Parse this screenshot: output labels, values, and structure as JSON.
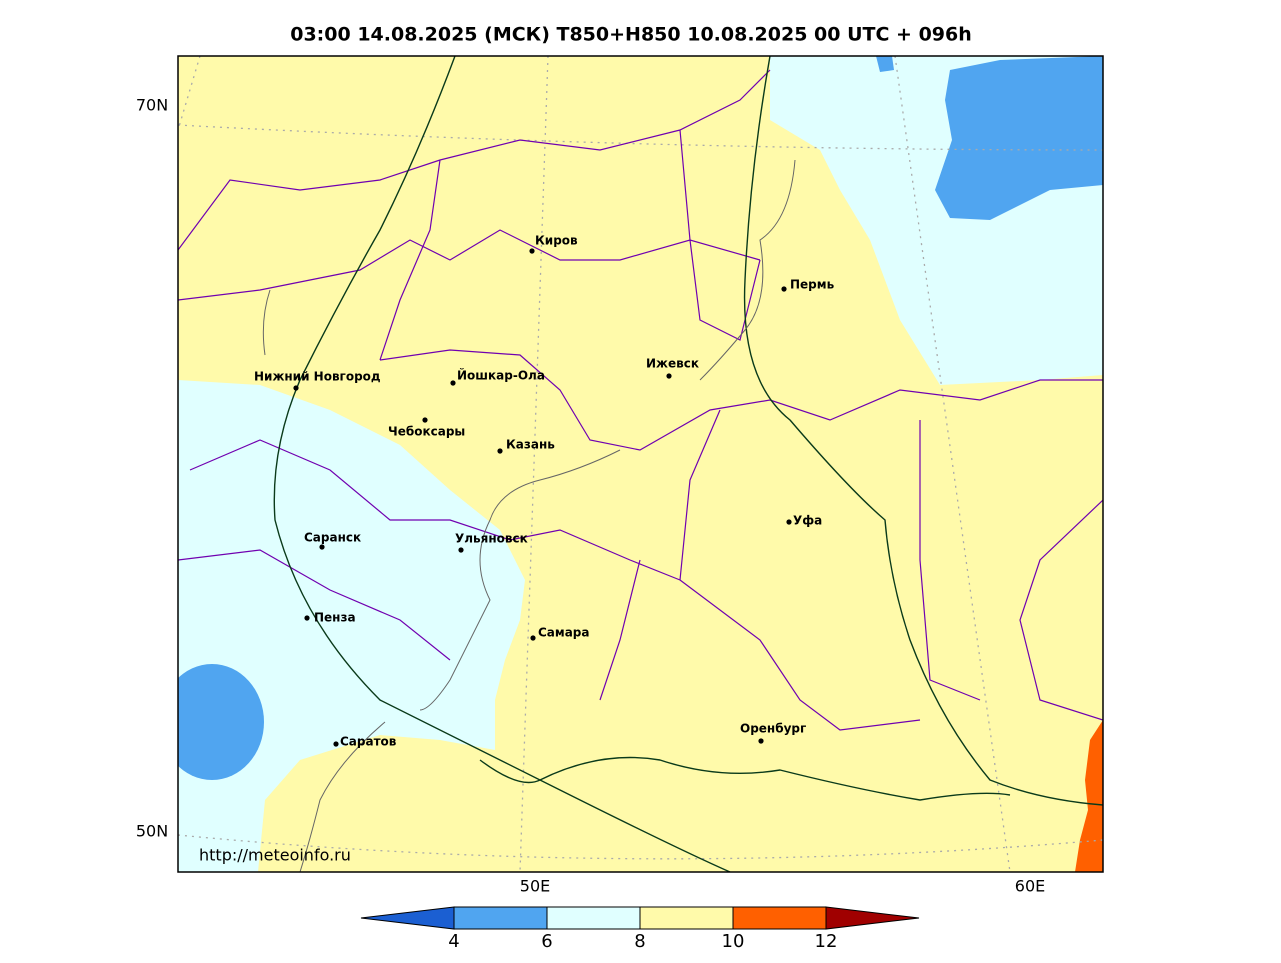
{
  "title": "03:00 14.08.2025 (МСК) T850+H850 10.08.2025 00 UTC + 096h",
  "watermark": "http://meteoinfo.ru",
  "lat_labels": [
    "70N",
    "50N"
  ],
  "lon_labels": [
    "50E",
    "60E"
  ],
  "cities": [
    "Киров",
    "Пермь",
    "Ижевск",
    "Нижний Новгород",
    "Йошкар-Ола",
    "Чебоксары",
    "Казань",
    "Саранск",
    "Ульяновск",
    "Уфа",
    "Пенза",
    "Самара",
    "Оренбург",
    "Саратов"
  ],
  "colorbar": {
    "ticks": [
      4,
      6,
      8,
      10,
      12
    ],
    "colors": [
      "#1b5fd2",
      "#50a5f0",
      "#e0ffff",
      "#fffaaa",
      "#ff6000",
      "#a00000"
    ]
  }
}
